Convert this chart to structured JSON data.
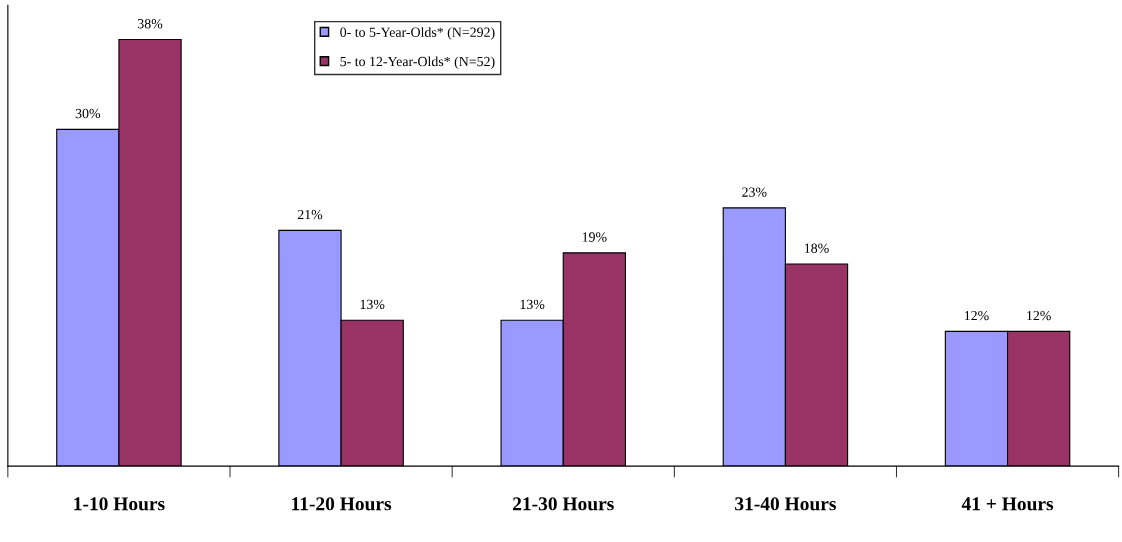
{
  "chart_data": {
    "type": "bar",
    "categories": [
      "1-10 Hours",
      "11-20 Hours",
      "21-30 Hours",
      "31-40 Hours",
      "41 + Hours"
    ],
    "series": [
      {
        "name": "0- to 5-Year-Olds* (N=292)",
        "color": "#9999ff",
        "values": [
          30,
          21,
          13,
          23,
          12
        ],
        "value_labels": [
          "30%",
          "21%",
          "13%",
          "23%",
          "12%"
        ]
      },
      {
        "name": "5- to 12-Year-Olds* (N=52)",
        "color": "#993366",
        "values": [
          38,
          13,
          19,
          18,
          12
        ],
        "value_labels": [
          "38%",
          "13%",
          "19%",
          "18%",
          "12%"
        ]
      }
    ],
    "data_labels": true,
    "legend": "top",
    "grid": false
  }
}
